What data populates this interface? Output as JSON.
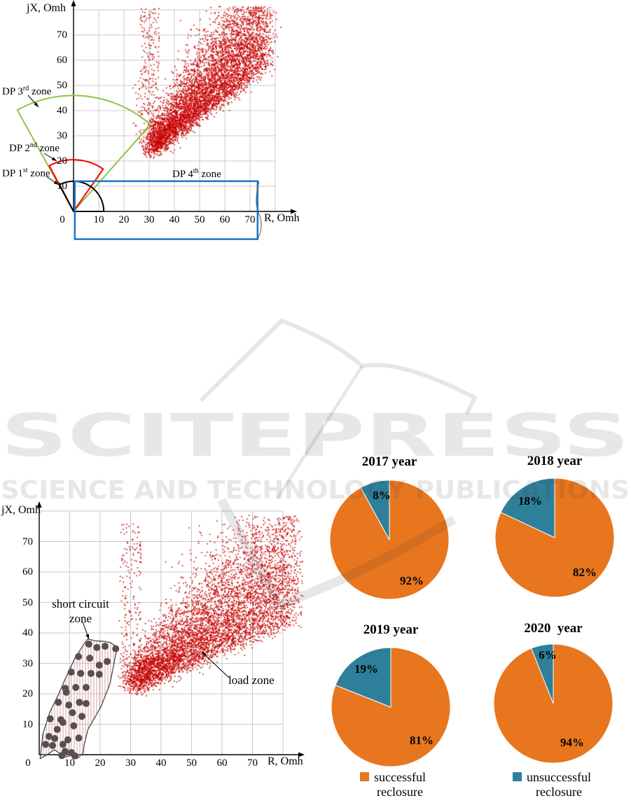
{
  "watermark": {
    "logo_text": "SCITEPRESS",
    "subtext": "SCIENCE AND TECHNOLOGY PUBLICATIONS",
    "color": "#e3e3e3"
  },
  "chart_data": [
    {
      "id": "impedance-protection-zones",
      "type": "scatter",
      "xlabel": "R, Omh",
      "ylabel": "jX, Omh",
      "x_ticks": [
        0,
        10,
        20,
        30,
        40,
        50,
        60,
        70
      ],
      "y_ticks": [
        10,
        20,
        30,
        40,
        50,
        60,
        70
      ],
      "xlim": [
        0,
        80
      ],
      "ylim": [
        0,
        80
      ],
      "grid": true,
      "point_color": "#c80000",
      "clusters": [
        {
          "kind": "fan",
          "x0": 30.5,
          "y0": 23,
          "x1": 77,
          "y1": 57,
          "jx": 2.2,
          "jy": 1.6,
          "spread0": 4,
          "spread1": 26,
          "n": 6000
        },
        {
          "kind": "uniform",
          "x": [
            26.5,
            34
          ],
          "y": [
            32,
            80.5
          ],
          "n": 230
        },
        {
          "kind": "uniform",
          "x": [
            23.5,
            27.5
          ],
          "y": [
            30,
            52
          ],
          "n": 14
        },
        {
          "kind": "points",
          "pts": [
            [
              24.5,
              50.2
            ],
            [
              23.8,
              35
            ]
          ]
        }
      ],
      "clip": {
        "x_max": 82.3,
        "y_max": 81.3
      },
      "zones": [
        {
          "label_parts": [
            "DP 1",
            "st",
            " zone"
          ],
          "type": "sector",
          "color": "#000000",
          "radius_ohm": 12,
          "angle_start": 0,
          "angle_end": 117.5
        },
        {
          "label_parts": [
            "DP 2",
            "nd",
            " zone"
          ],
          "type": "sector",
          "color": "#ff0000",
          "radius_ohm": 20.5,
          "angle_start": 55,
          "angle_end": 118
        },
        {
          "label_parts": [
            "DP 3",
            "rd",
            " zone"
          ],
          "type": "sector",
          "color": "#8cc540",
          "radius_ohm": 46,
          "angle_start": 48.5,
          "angle_end": 119
        },
        {
          "label_parts": [
            "DP 4",
            "th",
            " zone"
          ],
          "type": "rect",
          "color": "#1878c8",
          "x_ohm": [
            0.5,
            73
          ],
          "y_ohm": [
            -11,
            12
          ]
        }
      ]
    },
    {
      "id": "load-vs-short-circuit",
      "type": "scatter",
      "xlabel": "R, Omh",
      "ylabel": "jX, Omh",
      "x_ticks": [
        0,
        10,
        20,
        30,
        40,
        50,
        60,
        70
      ],
      "y_ticks": [
        10,
        20,
        30,
        40,
        50,
        60,
        70
      ],
      "xlim": [
        0,
        80
      ],
      "ylim": [
        0,
        80
      ],
      "grid": true,
      "point_color": "#c80000",
      "clusters": [
        {
          "kind": "fan",
          "x0": 30.5,
          "y0": 21.5,
          "x1": 84,
          "y1": 44,
          "jx": 2.2,
          "jy": 1.6,
          "spread0": 4,
          "spread1": 28,
          "n": 6200
        },
        {
          "kind": "uniform",
          "x": [
            26.5,
            33.5
          ],
          "y": [
            28,
            76
          ],
          "n": 200
        },
        {
          "kind": "points",
          "pts": [
            [
              27,
              50.5
            ],
            [
              28.2,
              49
            ],
            [
              26.3,
              44
            ],
            [
              29.5,
              75
            ],
            [
              30.5,
              70.5
            ],
            [
              28,
              55
            ]
          ]
        }
      ],
      "clip": {
        "x_max": 86.5,
        "y_max": 78.6
      },
      "load_zone_label": "load zone",
      "short_circuit_zone": {
        "label_lines": [
          "short circuit",
          "zone"
        ],
        "outline_color": "#4a4a4a",
        "hatch_color": "#d8a0a0",
        "dot_color": "#584f4e",
        "polygon": [
          [
            0.3,
            -1.3
          ],
          [
            1.2,
            6.8
          ],
          [
            3.5,
            14
          ],
          [
            6.2,
            19.5
          ],
          [
            8.6,
            25
          ],
          [
            11.6,
            31.5
          ],
          [
            14.8,
            36.5
          ],
          [
            15.9,
            38
          ],
          [
            18.5,
            37.4
          ],
          [
            21.5,
            37.2
          ],
          [
            23.4,
            36.8
          ],
          [
            25.6,
            35.3
          ],
          [
            23.2,
            23.2
          ],
          [
            20.2,
            15.6
          ],
          [
            16,
            8.3
          ],
          [
            14.8,
            3.4
          ],
          [
            14.4,
            0.6
          ],
          [
            12.6,
            -1.2
          ],
          [
            10.5,
            -0.3
          ],
          [
            8.4,
            -0.8
          ],
          [
            5,
            1.6
          ],
          [
            2.2,
            -0.2
          ]
        ],
        "dots": [
          [
            16.3,
            36.3
          ],
          [
            18.9,
            35.2
          ],
          [
            21.6,
            35.6
          ],
          [
            25.1,
            34.8
          ],
          [
            12.9,
            32.2
          ],
          [
            16.6,
            31.7
          ],
          [
            22.3,
            30.6
          ],
          [
            19.7,
            29.4
          ],
          [
            10.5,
            27.1
          ],
          [
            13.6,
            26.7
          ],
          [
            17,
            26.7
          ],
          [
            19.7,
            26.4
          ],
          [
            8.6,
            21.8
          ],
          [
            12,
            22.1
          ],
          [
            15.4,
            22.1
          ],
          [
            8.9,
            20.5
          ],
          [
            6.3,
            17.2
          ],
          [
            9.7,
            16.3
          ],
          [
            13.2,
            17.2
          ],
          [
            15.4,
            16.8
          ],
          [
            10.9,
            13.8
          ],
          [
            14,
            12.6
          ],
          [
            3.6,
            11.8
          ],
          [
            7.1,
            11.5
          ],
          [
            7.8,
            10.6
          ],
          [
            11.3,
            9.5
          ],
          [
            13,
            5.5
          ],
          [
            5.9,
            8.3
          ],
          [
            3.2,
            6
          ],
          [
            5.1,
            5.3
          ],
          [
            9.4,
            4.9
          ],
          [
            2.1,
            3.4
          ],
          [
            4.4,
            3
          ],
          [
            7.8,
            3.4
          ],
          [
            8.5,
            1.1
          ],
          [
            10.6,
            0.7
          ],
          [
            7.4,
            -0.3
          ],
          [
            11.7,
            -0.4
          ]
        ]
      }
    },
    {
      "id": "reclosure-pies",
      "type": "pie",
      "colors": {
        "successful": "#e8761e",
        "unsuccessful": "#2e7f99"
      },
      "pies": [
        {
          "title": "2017 year",
          "successful_pct": 92,
          "unsuccessful_pct": 8,
          "big_label": "92%",
          "small_label": "8%"
        },
        {
          "title": "2018 year",
          "successful_pct": 82,
          "unsuccessful_pct": 18,
          "big_label": "82%",
          "small_label": "18%"
        },
        {
          "title": "2019 year",
          "successful_pct": 81,
          "unsuccessful_pct": 19,
          "big_label": "81%",
          "small_label": "19%"
        },
        {
          "title": "2020  year",
          "successful_pct": 94,
          "unsuccessful_pct": 6,
          "big_label": "94%",
          "small_label": "6%"
        }
      ],
      "legend": [
        {
          "color_key": "successful",
          "label_lines": [
            "successful",
            "reclosure"
          ]
        },
        {
          "color_key": "unsuccessful",
          "label_lines": [
            "unsuccessful",
            "reclosure"
          ]
        }
      ]
    }
  ]
}
